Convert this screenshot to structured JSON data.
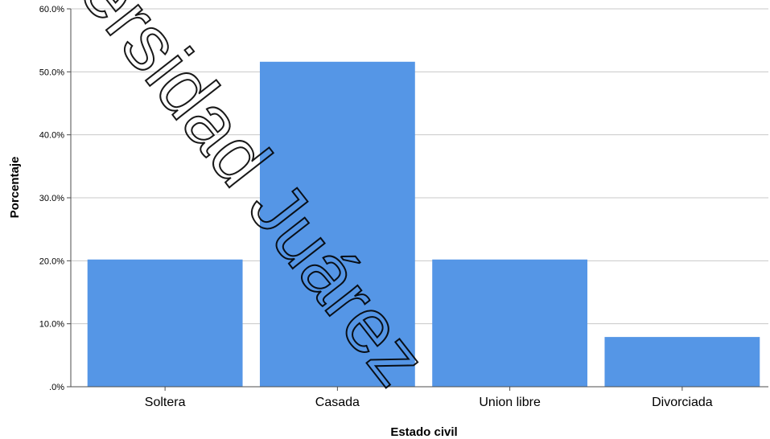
{
  "chart_data": {
    "type": "bar",
    "categories": [
      "Soltera",
      "Casada",
      "Union libre",
      "Divorciada"
    ],
    "values": [
      20.2,
      51.6,
      20.2,
      7.9
    ],
    "xlabel": "Estado civil",
    "ylabel": "Porcentaje",
    "ylim": [
      0,
      60
    ],
    "yticks": [
      0,
      10,
      20,
      30,
      40,
      50,
      60
    ],
    "ytick_labels": [
      ".0%",
      "10.0%",
      "20.0%",
      "30.0%",
      "40.0%",
      "50.0%",
      "60.0%"
    ],
    "grid": true,
    "bar_color": "#5596e6",
    "grid_color": "#c8c8c8"
  },
  "watermark": {
    "text": "ersidad Juárez"
  }
}
